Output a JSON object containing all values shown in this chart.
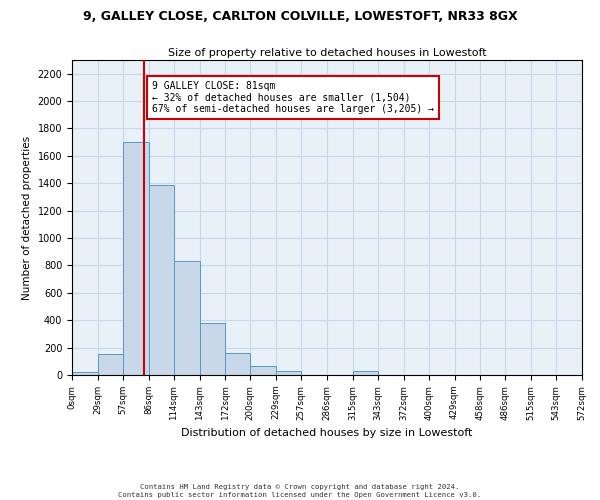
{
  "title": "9, GALLEY CLOSE, CARLTON COLVILLE, LOWESTOFT, NR33 8GX",
  "subtitle": "Size of property relative to detached houses in Lowestoft",
  "xlabel": "Distribution of detached houses by size in Lowestoft",
  "ylabel": "Number of detached properties",
  "bar_edges": [
    0,
    29,
    57,
    86,
    114,
    143,
    172,
    200,
    229,
    257,
    286,
    315,
    343,
    372,
    400,
    429,
    458,
    486,
    515,
    543,
    572
  ],
  "bar_heights": [
    20,
    155,
    1700,
    1390,
    830,
    380,
    160,
    65,
    30,
    0,
    0,
    30,
    0,
    0,
    0,
    0,
    0,
    0,
    0,
    0
  ],
  "bar_color": "#c8d8e8",
  "bar_edgecolor": "#5599cc",
  "property_line_x": 81,
  "property_line_color": "#cc0000",
  "ylim": [
    0,
    2300
  ],
  "yticks": [
    0,
    200,
    400,
    600,
    800,
    1000,
    1200,
    1400,
    1600,
    1800,
    2000,
    2200
  ],
  "annotation_title": "9 GALLEY CLOSE: 81sqm",
  "annotation_line1": "← 32% of detached houses are smaller (1,504)",
  "annotation_line2": "67% of semi-detached houses are larger (3,205) →",
  "annotation_box_color": "#cc0000",
  "tick_labels": [
    "0sqm",
    "29sqm",
    "57sqm",
    "86sqm",
    "114sqm",
    "143sqm",
    "172sqm",
    "200sqm",
    "229sqm",
    "257sqm",
    "286sqm",
    "315sqm",
    "343sqm",
    "372sqm",
    "400sqm",
    "429sqm",
    "458sqm",
    "486sqm",
    "515sqm",
    "543sqm",
    "572sqm"
  ],
  "footer_line1": "Contains HM Land Registry data © Crown copyright and database right 2024.",
  "footer_line2": "Contains public sector information licensed under the Open Government Licence v3.0.",
  "grid_color": "#c8d8ea",
  "background_color": "#e8f0f8"
}
